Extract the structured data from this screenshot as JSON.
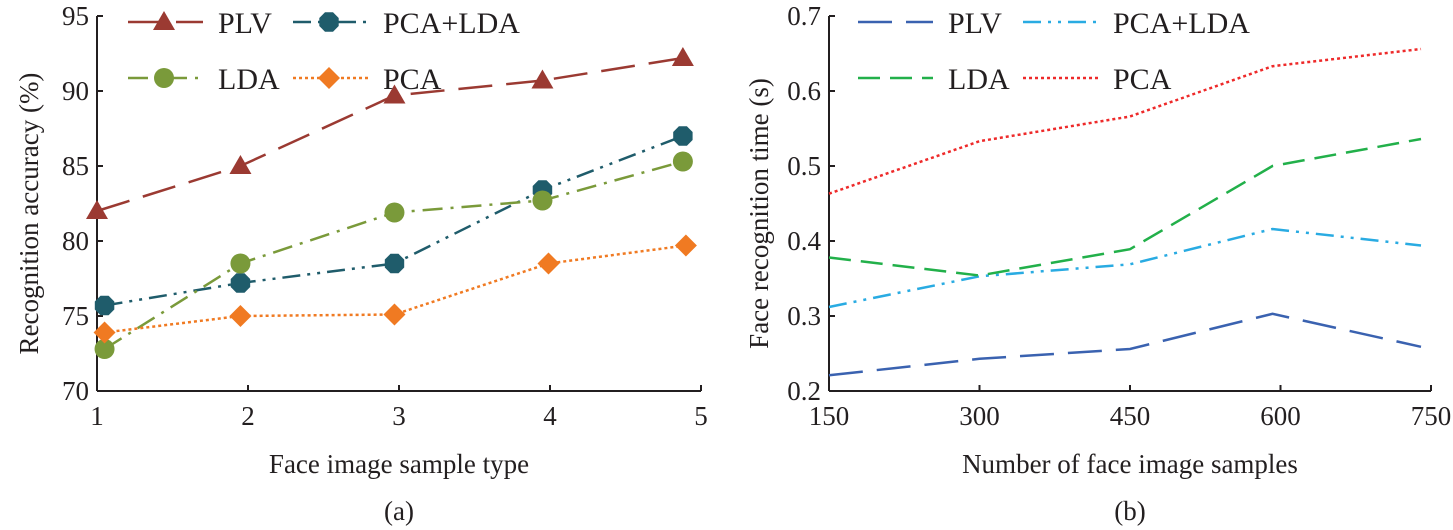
{
  "chart_data": [
    {
      "type": "line",
      "panel_label": "(a)",
      "xlabel": "Face image sample type",
      "ylabel": "Recognition accuracy (%)",
      "xlim": [
        1,
        5
      ],
      "ylim": [
        70,
        95
      ],
      "xticks": [
        1,
        2,
        3,
        4,
        5
      ],
      "yticks": [
        70,
        75,
        80,
        85,
        90,
        95
      ],
      "grid": false,
      "legend_position": "top-left",
      "series": [
        {
          "name": "PLV",
          "color": "#9b3a32",
          "dash": "long-dash",
          "marker": "triangle",
          "x": [
            1.0,
            1.95,
            2.97,
            3.95,
            4.88
          ],
          "y": [
            82.0,
            85.0,
            89.7,
            90.7,
            92.2
          ]
        },
        {
          "name": "PCA+LDA",
          "color": "#1f5c6b",
          "dash": "dash-dot-dot",
          "marker": "octagon",
          "x": [
            1.05,
            1.95,
            2.97,
            3.95,
            4.88
          ],
          "y": [
            75.7,
            77.2,
            78.5,
            83.4,
            87.0
          ]
        },
        {
          "name": "LDA",
          "color": "#7a9a3a",
          "dash": "dash-dot",
          "marker": "circle",
          "x": [
            1.05,
            1.95,
            2.97,
            3.95,
            4.88
          ],
          "y": [
            72.8,
            78.5,
            81.9,
            82.7,
            85.3
          ]
        },
        {
          "name": "PCA",
          "color": "#f07a22",
          "dash": "dotted",
          "marker": "diamond",
          "x": [
            1.05,
            1.95,
            2.97,
            3.99,
            4.9
          ],
          "y": [
            73.9,
            75.0,
            75.1,
            78.5,
            79.7
          ]
        }
      ]
    },
    {
      "type": "line",
      "panel_label": "(b)",
      "xlabel": "Number of face image samples",
      "ylabel": "Face recognition time (s)",
      "xlim": [
        150,
        750
      ],
      "ylim": [
        0.2,
        0.7
      ],
      "xticks": [
        150,
        300,
        450,
        600,
        750
      ],
      "yticks": [
        0.2,
        0.3,
        0.4,
        0.5,
        0.6,
        0.7
      ],
      "grid": false,
      "legend_position": "top-left",
      "series": [
        {
          "name": "PLV",
          "color": "#3a62b0",
          "dash": "long-dash",
          "marker": "none",
          "x": [
            150,
            300,
            450,
            592,
            740
          ],
          "y": [
            0.221,
            0.243,
            0.256,
            0.303,
            0.259
          ]
        },
        {
          "name": "PCA+LDA",
          "color": "#29abe2",
          "dash": "dash-dot-dot",
          "marker": "none",
          "x": [
            150,
            300,
            450,
            592,
            740
          ],
          "y": [
            0.312,
            0.353,
            0.369,
            0.416,
            0.394
          ]
        },
        {
          "name": "LDA",
          "color": "#22b04a",
          "dash": "dash",
          "marker": "none",
          "x": [
            150,
            300,
            450,
            592,
            740
          ],
          "y": [
            0.378,
            0.354,
            0.389,
            0.5,
            0.536
          ]
        },
        {
          "name": "PCA",
          "color": "#ee2a2a",
          "dash": "dotted",
          "marker": "none",
          "x": [
            150,
            300,
            450,
            592,
            740
          ],
          "y": [
            0.463,
            0.533,
            0.566,
            0.633,
            0.656
          ]
        }
      ]
    }
  ]
}
